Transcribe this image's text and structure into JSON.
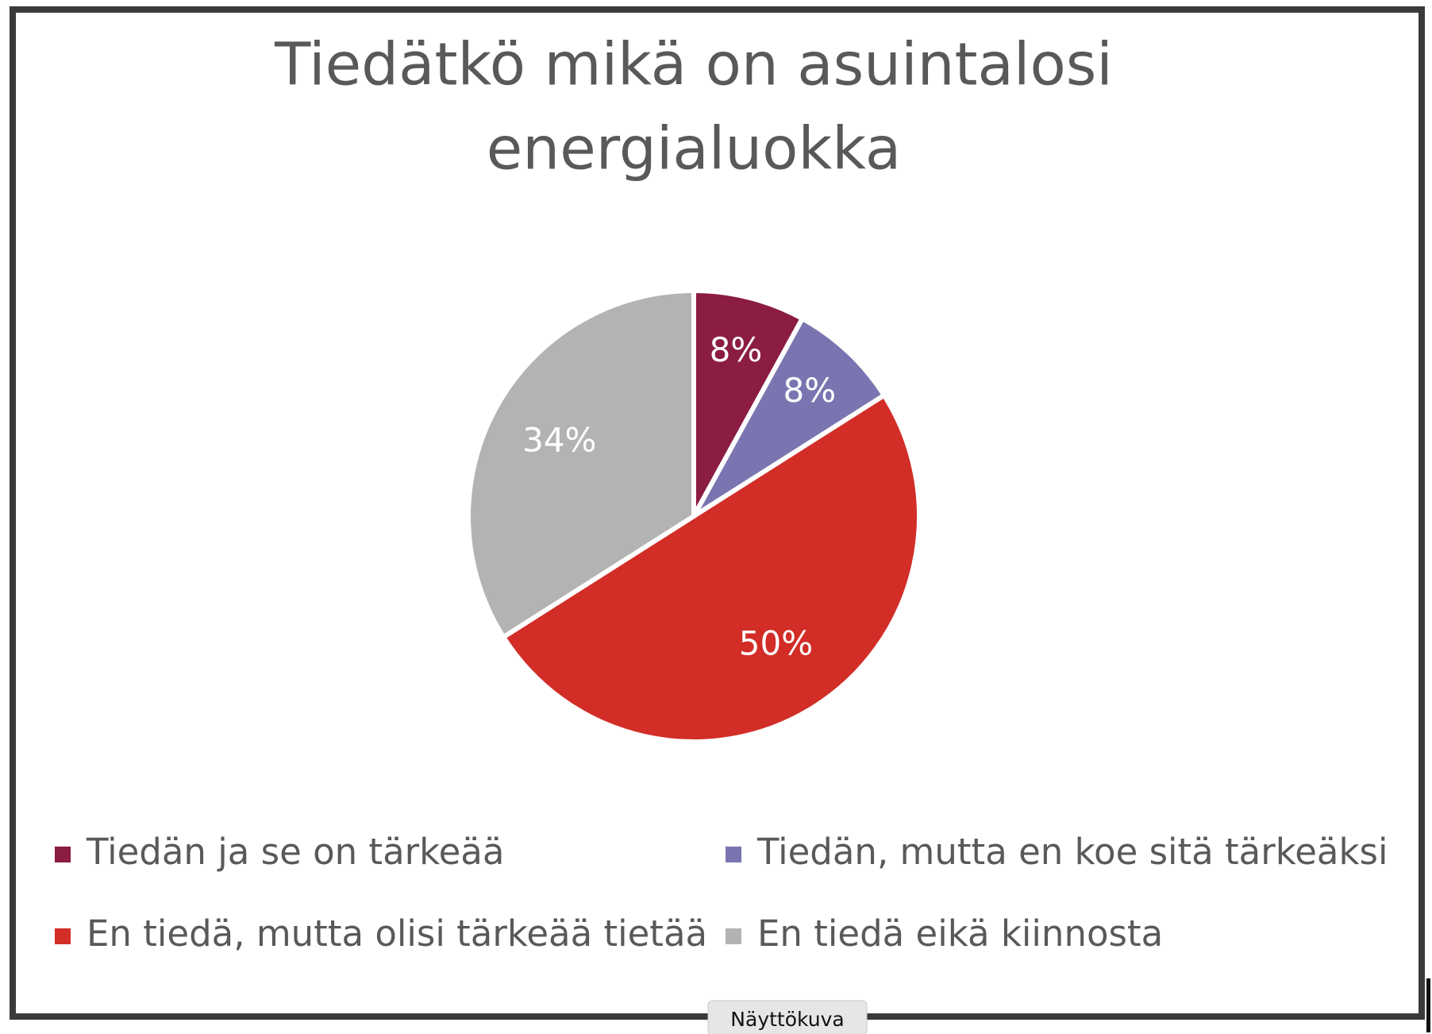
{
  "chart_data": {
    "type": "pie",
    "title": [
      "Tiedätkö mikä on asuintalosi",
      "energialuokka"
    ],
    "categories": [
      "Tiedän ja se on tärkeää",
      "Tiedän, mutta en koe sitä tärkeäksi",
      "En tiedä, mutta olisi tärkeää tietää",
      "En tiedä eikä kiinnosta"
    ],
    "values": [
      8,
      8,
      50,
      34
    ],
    "value_labels": [
      "8%",
      "8%",
      "50%",
      "34%"
    ],
    "colors": [
      "#8b1c44",
      "#7a75b0",
      "#d22d27",
      "#b3b3b4"
    ],
    "legend": "bottom"
  },
  "tooltip": "Näyttökuva"
}
